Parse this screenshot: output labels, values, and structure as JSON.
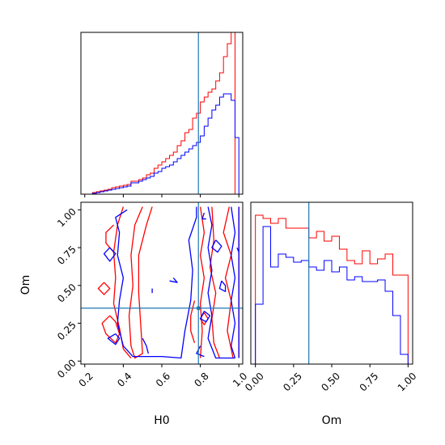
{
  "chart_data": {
    "type": "corner",
    "parameters": [
      "H0",
      "Om"
    ],
    "truths": {
      "H0": 0.79,
      "Om": 0.35
    },
    "colors": {
      "series_a": "#ff0000",
      "series_b": "#0000ff",
      "truth": "#1f77b4",
      "axes": "#000000"
    },
    "series": [
      {
        "color": "#ff0000",
        "h0_hist": {
          "edges": [
            0.2,
            0.22,
            0.24,
            0.26,
            0.28,
            0.3,
            0.32,
            0.34,
            0.36,
            0.38,
            0.4,
            0.42,
            0.44,
            0.46,
            0.48,
            0.5,
            0.52,
            0.54,
            0.56,
            0.58,
            0.6,
            0.62,
            0.64,
            0.66,
            0.68,
            0.7,
            0.72,
            0.74,
            0.76,
            0.78,
            0.8,
            0.82,
            0.84,
            0.86,
            0.88,
            0.9,
            0.92,
            0.94,
            0.96,
            0.98,
            1.0,
            1.02
          ],
          "counts": [
            0,
            0,
            0.01,
            0.015,
            0.02,
            0.025,
            0.03,
            0.04,
            0.045,
            0.05,
            0.055,
            0.06,
            0.08,
            0.08,
            0.09,
            0.1,
            0.12,
            0.13,
            0.16,
            0.18,
            0.2,
            0.22,
            0.24,
            0.26,
            0.3,
            0.33,
            0.38,
            0.4,
            0.47,
            0.5,
            0.57,
            0.6,
            0.63,
            0.65,
            0.7,
            0.75,
            0.85,
            0.93,
            1.0,
            0,
            0
          ]
        },
        "om_hist": {
          "edges": [
            0.0,
            0.05,
            0.1,
            0.15,
            0.2,
            0.25,
            0.3,
            0.35,
            0.4,
            0.45,
            0.5,
            0.55,
            0.6,
            0.65,
            0.7,
            0.75,
            0.8,
            0.85,
            0.9,
            0.95,
            1.0
          ],
          "counts": [
            0.92,
            0.9,
            0.87,
            0.9,
            0.84,
            0.84,
            0.84,
            0.78,
            0.82,
            0.76,
            0.79,
            0.71,
            0.64,
            0.62,
            0.7,
            0.62,
            0.65,
            0.68,
            0.55,
            0.55
          ]
        },
        "contours": [
          [
            [
              0.5,
              1.02
            ],
            [
              0.46,
              0.9
            ],
            [
              0.44,
              0.7
            ],
            [
              0.45,
              0.5
            ],
            [
              0.43,
              0.3
            ],
            [
              0.44,
              0.1
            ],
            [
              0.46,
              0.02
            ],
            [
              0.5,
              0.05
            ],
            [
              0.49,
              0.25
            ],
            [
              0.48,
              0.45
            ],
            [
              0.48,
              0.7
            ],
            [
              0.52,
              0.9
            ],
            [
              0.55,
              1.02
            ]
          ],
          [
            [
              0.4,
              1.02
            ],
            [
              0.37,
              0.9
            ],
            [
              0.35,
              0.72
            ],
            [
              0.36,
              0.55
            ],
            [
              0.35,
              0.38
            ],
            [
              0.38,
              0.22
            ],
            [
              0.4,
              0.08
            ],
            [
              0.44,
              0.02
            ]
          ],
          [
            [
              0.35,
              0.9
            ],
            [
              0.31,
              0.85
            ],
            [
              0.31,
              0.78
            ],
            [
              0.35,
              0.72
            ]
          ],
          [
            [
              0.3,
              0.52
            ],
            [
              0.27,
              0.48
            ],
            [
              0.3,
              0.44
            ],
            [
              0.33,
              0.48
            ],
            [
              0.3,
              0.52
            ]
          ],
          [
            [
              0.33,
              0.3
            ],
            [
              0.29,
              0.25
            ],
            [
              0.31,
              0.18
            ],
            [
              0.36,
              0.12
            ],
            [
              0.38,
              0.18
            ],
            [
              0.36,
              0.26
            ],
            [
              0.33,
              0.3
            ]
          ],
          [
            [
              0.8,
              1.02
            ],
            [
              0.82,
              0.85
            ],
            [
              0.8,
              0.7
            ],
            [
              0.82,
              0.55
            ],
            [
              0.8,
              0.38
            ],
            [
              0.81,
              0.2
            ],
            [
              0.8,
              0.02
            ]
          ],
          [
            [
              0.86,
              1.02
            ],
            [
              0.87,
              0.8
            ],
            [
              0.85,
              0.62
            ],
            [
              0.88,
              0.45
            ],
            [
              0.86,
              0.28
            ],
            [
              0.87,
              0.12
            ],
            [
              0.9,
              0.02
            ]
          ],
          [
            [
              0.95,
              1.02
            ],
            [
              0.92,
              0.85
            ],
            [
              0.96,
              0.7
            ],
            [
              0.93,
              0.55
            ],
            [
              0.96,
              0.4
            ],
            [
              0.94,
              0.2
            ],
            [
              0.97,
              0.02
            ]
          ],
          [
            [
              0.77,
              0.4
            ],
            [
              0.75,
              0.3
            ],
            [
              0.75,
              0.2
            ],
            [
              0.77,
              0.12
            ]
          ],
          [
            [
              0.82,
              0.32
            ],
            [
              0.8,
              0.28
            ],
            [
              0.82,
              0.24
            ],
            [
              0.84,
              0.28
            ],
            [
              0.82,
              0.32
            ]
          ],
          [
            [
              1.0,
              1.02
            ],
            [
              1.0,
              0.02
            ]
          ]
        ]
      },
      {
        "color": "#0000ff",
        "h0_hist": {
          "edges": [
            0.2,
            0.22,
            0.24,
            0.26,
            0.28,
            0.3,
            0.32,
            0.34,
            0.36,
            0.38,
            0.4,
            0.42,
            0.44,
            0.46,
            0.48,
            0.5,
            0.52,
            0.54,
            0.56,
            0.58,
            0.6,
            0.62,
            0.64,
            0.66,
            0.68,
            0.7,
            0.72,
            0.74,
            0.76,
            0.78,
            0.8,
            0.82,
            0.84,
            0.86,
            0.88,
            0.9,
            0.92,
            0.94,
            0.96,
            0.98,
            1.0,
            1.02
          ],
          "counts": [
            0,
            0,
            0.005,
            0.01,
            0.015,
            0.02,
            0.025,
            0.03,
            0.035,
            0.04,
            0.045,
            0.05,
            0.07,
            0.07,
            0.08,
            0.09,
            0.1,
            0.11,
            0.13,
            0.14,
            0.16,
            0.17,
            0.18,
            0.2,
            0.22,
            0.24,
            0.26,
            0.28,
            0.3,
            0.32,
            0.36,
            0.42,
            0.47,
            0.52,
            0.55,
            0.6,
            0.62,
            0.62,
            0.58,
            0.35,
            0
          ]
        },
        "om_hist": {
          "edges": [
            0.0,
            0.05,
            0.1,
            0.15,
            0.2,
            0.25,
            0.3,
            0.35,
            0.4,
            0.45,
            0.5,
            0.55,
            0.6,
            0.65,
            0.7,
            0.75,
            0.8,
            0.85,
            0.9,
            0.95,
            1.0
          ],
          "counts": [
            0.37,
            0.85,
            0.6,
            0.68,
            0.66,
            0.63,
            0.64,
            0.6,
            0.58,
            0.64,
            0.57,
            0.6,
            0.52,
            0.54,
            0.51,
            0.51,
            0.52,
            0.45,
            0.3,
            0.06
          ]
        },
        "contours": [
          [
            [
              0.42,
              1.0
            ],
            [
              0.36,
              0.95
            ],
            [
              0.38,
              0.85
            ],
            [
              0.37,
              0.7
            ],
            [
              0.4,
              0.55
            ],
            [
              0.38,
              0.4
            ],
            [
              0.37,
              0.25
            ],
            [
              0.4,
              0.1
            ],
            [
              0.45,
              0.03
            ],
            [
              0.6,
              0.03
            ],
            [
              0.7,
              0.02
            ],
            [
              0.72,
              0.2
            ],
            [
              0.75,
              0.4
            ],
            [
              0.76,
              0.6
            ],
            [
              0.74,
              0.8
            ],
            [
              0.78,
              0.95
            ],
            [
              0.78,
              1.02
            ]
          ],
          [
            [
              0.33,
              0.75
            ],
            [
              0.3,
              0.71
            ],
            [
              0.33,
              0.66
            ],
            [
              0.36,
              0.71
            ],
            [
              0.33,
              0.75
            ]
          ],
          [
            [
              0.36,
              0.18
            ],
            [
              0.32,
              0.15
            ],
            [
              0.36,
              0.11
            ],
            [
              0.38,
              0.15
            ],
            [
              0.36,
              0.18
            ]
          ],
          [
            [
              0.5,
              0.15
            ],
            [
              0.52,
              0.1
            ],
            [
              0.53,
              0.05
            ]
          ],
          [
            [
              0.55,
              0.48
            ],
            [
              0.55,
              0.45
            ]
          ],
          [
            [
              0.66,
              0.55
            ],
            [
              0.68,
              0.52
            ],
            [
              0.64,
              0.53
            ]
          ],
          [
            [
              0.82,
              0.98
            ],
            [
              0.81,
              0.94
            ],
            [
              0.83,
              0.94
            ]
          ],
          [
            [
              0.84,
              1.02
            ],
            [
              0.86,
              0.9
            ],
            [
              0.84,
              0.75
            ],
            [
              0.86,
              0.6
            ],
            [
              0.84,
              0.45
            ],
            [
              0.86,
              0.3
            ],
            [
              0.84,
              0.15
            ],
            [
              0.88,
              0.02
            ],
            [
              0.98,
              0.02
            ]
          ],
          [
            [
              0.96,
              1.02
            ],
            [
              0.98,
              0.85
            ],
            [
              0.96,
              0.7
            ],
            [
              0.98,
              0.55
            ],
            [
              0.96,
              0.4
            ],
            [
              0.98,
              0.25
            ],
            [
              0.96,
              0.1
            ],
            [
              0.98,
              0.02
            ]
          ],
          [
            [
              0.88,
              0.8
            ],
            [
              0.86,
              0.75
            ],
            [
              0.89,
              0.72
            ],
            [
              0.91,
              0.76
            ],
            [
              0.88,
              0.8
            ]
          ],
          [
            [
              0.91,
              0.53
            ],
            [
              0.9,
              0.48
            ],
            [
              0.93,
              0.46
            ],
            [
              0.93,
              0.5
            ],
            [
              0.91,
              0.53
            ]
          ],
          [
            [
              0.82,
              0.33
            ],
            [
              0.8,
              0.28
            ],
            [
              0.83,
              0.26
            ],
            [
              0.85,
              0.3
            ],
            [
              0.82,
              0.33
            ]
          ],
          [
            [
              0.8,
              0.1
            ],
            [
              0.78,
              0.05
            ],
            [
              0.82,
              0.03
            ]
          ],
          [
            [
              0.99,
              0.75
            ],
            [
              1.0,
              0.72
            ]
          ],
          [
            [
              1.0,
              1.02
            ],
            [
              1.0,
              0.02
            ]
          ]
        ]
      }
    ],
    "axes": [
      {
        "name": "h0-hist",
        "xlim": [
          0.18,
          1.02
        ],
        "ylim": [
          0,
          1.0
        ],
        "ticks_x": [
          0.2,
          0.4,
          0.6,
          0.8,
          1.0
        ],
        "tick_labels_x": [],
        "ticks_y": [],
        "tick_labels_y": []
      },
      {
        "name": "joint",
        "xlim": [
          0.18,
          1.02
        ],
        "ylim": [
          -0.02,
          1.05
        ],
        "ticks_x": [
          0.2,
          0.4,
          0.6,
          0.8,
          1.0
        ],
        "tick_labels_x": [
          "0.2",
          "0.4",
          "0.6",
          "0.8",
          "1.0"
        ],
        "ticks_y": [
          0.0,
          0.25,
          0.5,
          0.75,
          1.0
        ],
        "tick_labels_y": [
          "0.00",
          "0.25",
          "0.50",
          "0.75",
          "1.00"
        ],
        "xlabel": "H0",
        "ylabel": "Om"
      },
      {
        "name": "om-hist",
        "xlim": [
          -0.03,
          1.03
        ],
        "ylim": [
          0,
          1.0
        ],
        "ticks_x": [
          0.0,
          0.25,
          0.5,
          0.75,
          1.0
        ],
        "tick_labels_x": [
          "0.00",
          "0.25",
          "0.50",
          "0.75",
          "1.00"
        ],
        "ticks_y": [],
        "tick_labels_y": [],
        "xlabel": "Om"
      }
    ]
  }
}
